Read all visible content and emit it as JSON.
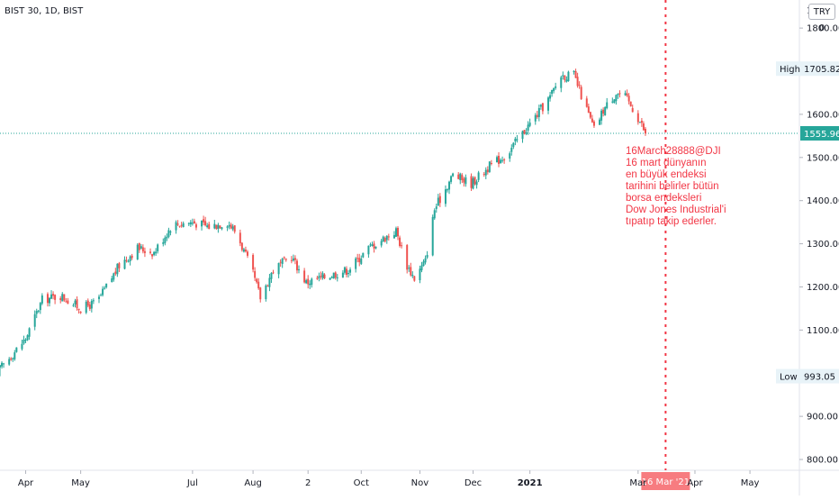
{
  "symbol": {
    "title": "BIST 30, 1D, BIST"
  },
  "currency_badge": "TRY 0",
  "annotation": {
    "lines": [
      "16March28888@DJI",
      "16 mart dünyanın",
      "en büyük endeksi",
      "tarihini belirler bütün",
      "borsa endeksleri",
      "Dow Jones Industrial'i",
      "tıpatıp takip ederler."
    ],
    "color": "#f23645"
  },
  "colors": {
    "up": "#26a69a",
    "down": "#ef5350",
    "marker": "#f23645",
    "current_line": "#26a69a"
  },
  "chart_data": {
    "type": "candlestick",
    "title": "BIST 30, 1D, BIST",
    "ylim": [
      775,
      1865
    ],
    "y_ticks": [
      800,
      900,
      1000,
      1100,
      1200,
      1300,
      1400,
      1500,
      1600,
      1700,
      1800
    ],
    "y_tick_labels": [
      "800.00",
      "900.00",
      "1000.00",
      "1100.00",
      "1200.00",
      "1300.00",
      "1400.00",
      "1500.00",
      "1600.00",
      "1700.00",
      "1800.00"
    ],
    "y_top_label": "1",
    "x_start": "2020-03-18",
    "x_end": "2021-05-26",
    "x_ticks": [
      {
        "date": "2020-04-01",
        "label": "Apr",
        "bold": false
      },
      {
        "date": "2020-05-01",
        "label": "May",
        "bold": false
      },
      {
        "date": "2020-07-01",
        "label": "Jul",
        "bold": false
      },
      {
        "date": "2020-08-03",
        "label": "Aug",
        "bold": false
      },
      {
        "date": "2020-09-02",
        "label": "2",
        "bold": false
      },
      {
        "date": "2020-10-01",
        "label": "Oct",
        "bold": false
      },
      {
        "date": "2020-11-02",
        "label": "Nov",
        "bold": false
      },
      {
        "date": "2020-12-01",
        "label": "Dec",
        "bold": false
      },
      {
        "date": "2021-01-01",
        "label": "2021",
        "bold": true
      },
      {
        "date": "2021-03-01",
        "label": "Mar",
        "bold": false
      },
      {
        "date": "2021-04-01",
        "label": "Apr",
        "bold": false
      },
      {
        "date": "2021-05-01",
        "label": "May",
        "bold": false
      }
    ],
    "high": {
      "label": "High",
      "value": 1705.82,
      "value_label": "1705.82"
    },
    "low": {
      "label": "Low",
      "value": 993.05,
      "value_label": "993.05"
    },
    "last_price": {
      "value": 1555.96,
      "value_label": "1555.96"
    },
    "marker": {
      "date": "2021-03-16",
      "label": "16 Mar '21"
    },
    "anchors": [
      [
        "2020-03-18",
        1010
      ],
      [
        "2020-04-01",
        1080
      ],
      [
        "2020-04-10",
        1170
      ],
      [
        "2020-04-20",
        1180
      ],
      [
        "2020-05-01",
        1150
      ],
      [
        "2020-05-10",
        1165
      ],
      [
        "2020-05-22",
        1250
      ],
      [
        "2020-06-01",
        1290
      ],
      [
        "2020-06-10",
        1280
      ],
      [
        "2020-06-20",
        1345
      ],
      [
        "2020-07-01",
        1350
      ],
      [
        "2020-07-10",
        1340
      ],
      [
        "2020-07-20",
        1350
      ],
      [
        "2020-07-25",
        1325
      ],
      [
        "2020-08-03",
        1230
      ],
      [
        "2020-08-07",
        1175
      ],
      [
        "2020-08-14",
        1240
      ],
      [
        "2020-08-24",
        1270
      ],
      [
        "2020-09-01",
        1210
      ],
      [
        "2020-09-12",
        1225
      ],
      [
        "2020-09-24",
        1240
      ],
      [
        "2020-10-05",
        1290
      ],
      [
        "2020-10-16",
        1320
      ],
      [
        "2020-10-20",
        1330
      ],
      [
        "2020-10-26",
        1250
      ],
      [
        "2020-10-30",
        1220
      ],
      [
        "2020-11-05",
        1260
      ],
      [
        "2020-11-10",
        1380
      ],
      [
        "2020-11-20",
        1460
      ],
      [
        "2020-11-30",
        1440
      ],
      [
        "2020-12-10",
        1480
      ],
      [
        "2020-12-20",
        1510
      ],
      [
        "2020-12-25",
        1540
      ],
      [
        "2021-01-05",
        1600
      ],
      [
        "2021-01-12",
        1640
      ],
      [
        "2021-01-18",
        1690
      ],
      [
        "2021-01-25",
        1690
      ],
      [
        "2021-02-01",
        1610
      ],
      [
        "2021-02-05",
        1565
      ],
      [
        "2021-02-10",
        1610
      ],
      [
        "2021-02-17",
        1650
      ],
      [
        "2021-02-22",
        1640
      ],
      [
        "2021-02-28",
        1600
      ],
      [
        "2021-03-03",
        1575
      ],
      [
        "2021-03-05",
        1555
      ]
    ]
  }
}
